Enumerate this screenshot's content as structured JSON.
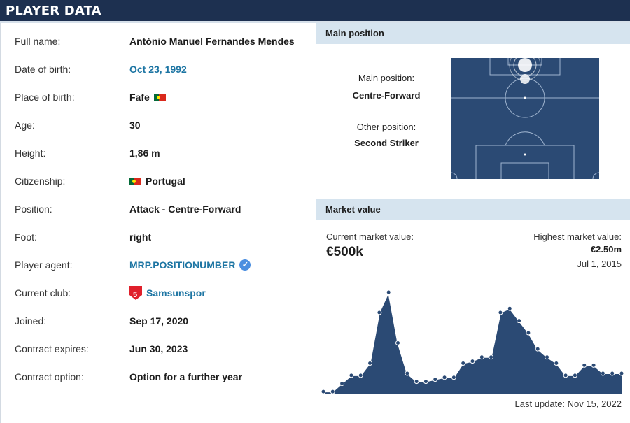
{
  "header": {
    "title": "PLAYER DATA"
  },
  "player": {
    "rows": [
      {
        "label": "Full name:",
        "value": "António Manuel Fernandes Mendes"
      },
      {
        "label": "Date of birth:",
        "value": "Oct 23, 1992"
      },
      {
        "label": "Place of birth:",
        "value": "Fafe"
      },
      {
        "label": "Age:",
        "value": "30"
      },
      {
        "label": "Height:",
        "value": "1,86 m"
      },
      {
        "label": "Citizenship:",
        "value": "Portugal"
      },
      {
        "label": "Position:",
        "value": "Attack - Centre-Forward"
      },
      {
        "label": "Foot:",
        "value": "right"
      },
      {
        "label": "Player agent:",
        "value": "MRP.POSITIONUMBER"
      },
      {
        "label": "Current club:",
        "value": "Samsunspor"
      },
      {
        "label": "Joined:",
        "value": "Sep 17, 2020"
      },
      {
        "label": "Contract expires:",
        "value": "Jun 30, 2023"
      },
      {
        "label": "Contract option:",
        "value": "Option for a further year"
      }
    ]
  },
  "position_panel": {
    "title": "Main position",
    "main_label": "Main position:",
    "main_value": "Centre-Forward",
    "other_label": "Other position:",
    "other_value": "Second Striker",
    "pitch_color": "#2b4a74"
  },
  "market_panel": {
    "title": "Market value",
    "current_label": "Current market value:",
    "current_value": "€500k",
    "highest_label": "Highest market value:",
    "highest_value": "€2.50m",
    "highest_date": "Jul 1, 2015",
    "last_update": "Last update: Nov 15, 2022",
    "area_color": "#2b4a74"
  },
  "chart_data": {
    "type": "area",
    "values": [
      0.05,
      0.05,
      0.25,
      0.45,
      0.45,
      0.75,
      2.0,
      2.5,
      1.25,
      0.5,
      0.3,
      0.3,
      0.35,
      0.4,
      0.4,
      0.75,
      0.8,
      0.9,
      0.9,
      2.0,
      2.1,
      1.8,
      1.5,
      1.1,
      0.9,
      0.75,
      0.45,
      0.45,
      0.7,
      0.7,
      0.5,
      0.5,
      0.5
    ]
  }
}
